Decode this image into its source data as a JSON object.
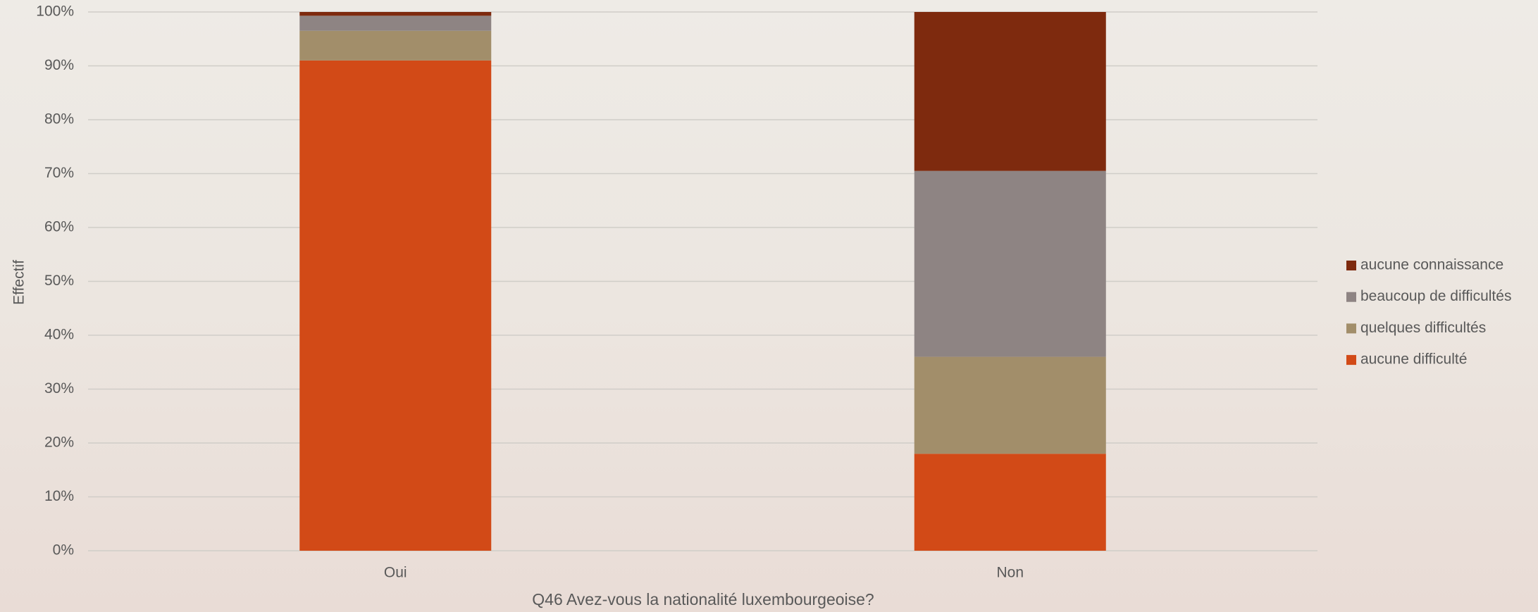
{
  "chart_data": {
    "type": "stacked_bar",
    "x_label": "Q46 Avez-vous la nationalité luxembourgeoise?",
    "y_label": "Effectif",
    "categories": [
      "Oui",
      "Non"
    ],
    "series": [
      {
        "name": "aucune difficulté",
        "color": "#d24a17",
        "values": [
          91,
          18
        ]
      },
      {
        "name": "quelques difficultés",
        "color": "#a28e6a",
        "values": [
          5.5,
          18
        ]
      },
      {
        "name": "beaucoup de difficultés",
        "color": "#8e8483",
        "values": [
          2.8,
          34.5
        ]
      },
      {
        "name": "aucune connaissance",
        "color": "#7e2a0e",
        "values": [
          0.7,
          29.5
        ]
      }
    ],
    "ylim": [
      0,
      100
    ],
    "yticks": [
      {
        "value": 0,
        "label": "0%"
      },
      {
        "value": 10,
        "label": "10%"
      },
      {
        "value": 20,
        "label": "20%"
      },
      {
        "value": 30,
        "label": "30%"
      },
      {
        "value": 40,
        "label": "40%"
      },
      {
        "value": 50,
        "label": "50%"
      },
      {
        "value": 60,
        "label": "60%"
      },
      {
        "value": 70,
        "label": "70%"
      },
      {
        "value": 80,
        "label": "80%"
      },
      {
        "value": 90,
        "label": "90%"
      },
      {
        "value": 100,
        "label": "100%"
      }
    ],
    "grid": true,
    "legend": "right"
  }
}
